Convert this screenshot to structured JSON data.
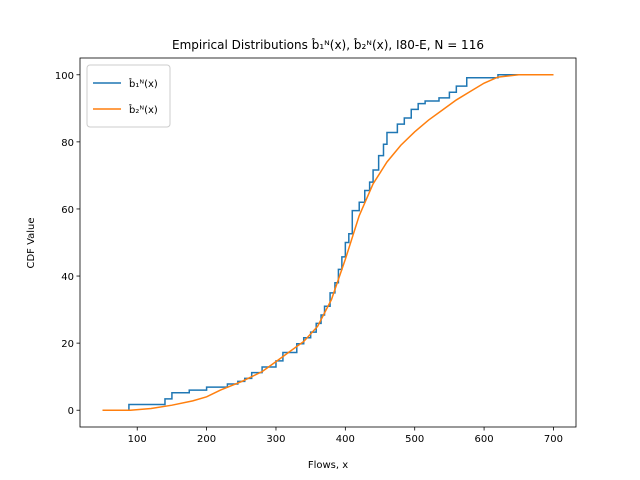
{
  "chart_data": {
    "type": "line",
    "title": "Empirical Distributions b̂₁ᴺ(x), b̂₂ᴺ(x), I80-E, N = 116",
    "x_label": "Flows, x",
    "y_label": "CDF Value",
    "xlim": [
      17.5,
      732.5
    ],
    "ylim": [
      -5,
      105
    ],
    "xticks": [
      100,
      200,
      300,
      400,
      500,
      600,
      700
    ],
    "yticks": [
      0,
      20,
      40,
      60,
      80,
      100
    ],
    "legend": "upper left",
    "series": [
      {
        "name": "b̂₁ᴺ(x)",
        "color": "#1f77b4",
        "x": [
          50,
          88,
          88,
          140,
          140,
          150,
          150,
          175,
          175,
          200,
          200,
          230,
          230,
          245,
          245,
          255,
          255,
          265,
          265,
          280,
          280,
          300,
          300,
          310,
          310,
          330,
          330,
          340,
          340,
          350,
          350,
          358,
          358,
          365,
          365,
          370,
          370,
          378,
          378,
          385,
          385,
          390,
          390,
          395,
          395,
          400,
          400,
          405,
          405,
          410,
          410,
          420,
          420,
          428,
          428,
          435,
          435,
          440,
          440,
          448,
          448,
          455,
          455,
          460,
          460,
          475,
          475,
          485,
          485,
          495,
          495,
          505,
          505,
          515,
          515,
          535,
          535,
          550,
          550,
          560,
          560,
          575,
          575,
          620,
          620,
          700
        ],
        "values": [
          0,
          0,
          1.7,
          1.7,
          3.4,
          3.4,
          5.2,
          5.2,
          6.0,
          6.0,
          6.9,
          6.9,
          7.8,
          7.8,
          8.6,
          8.6,
          9.5,
          9.5,
          11.2,
          11.2,
          12.9,
          12.9,
          14.7,
          14.7,
          17.2,
          17.2,
          19.8,
          19.8,
          21.6,
          21.6,
          23.3,
          23.3,
          25.9,
          25.9,
          28.4,
          28.4,
          31,
          31,
          35,
          35,
          38,
          38,
          42,
          42,
          45.7,
          45.7,
          50,
          50,
          52.6,
          52.6,
          59.5,
          59.5,
          62,
          62,
          65.5,
          65.5,
          68,
          68,
          71.6,
          71.6,
          75.9,
          75.9,
          79.3,
          79.3,
          82.8,
          82.8,
          85.3,
          85.3,
          87.1,
          87.1,
          89.7,
          89.7,
          91.4,
          91.4,
          92.2,
          92.2,
          93.1,
          93.1,
          94.8,
          94.8,
          96.6,
          96.6,
          99.1,
          99.1,
          100,
          100
        ]
      },
      {
        "name": "b̂₂ᴺ(x)",
        "color": "#ff7f0e",
        "x": [
          50,
          90,
          120,
          150,
          180,
          200,
          220,
          250,
          280,
          300,
          320,
          340,
          360,
          380,
          400,
          420,
          440,
          460,
          480,
          500,
          520,
          540,
          560,
          580,
          600,
          620,
          650,
          700
        ],
        "values": [
          0,
          0,
          0.5,
          1.5,
          2.8,
          4,
          6,
          8.5,
          11.5,
          14.5,
          17.5,
          20.5,
          25,
          33,
          45,
          58,
          67.5,
          74,
          79,
          83,
          86.5,
          89.5,
          92.5,
          95,
          97.5,
          99.3,
          100,
          100
        ]
      }
    ]
  }
}
